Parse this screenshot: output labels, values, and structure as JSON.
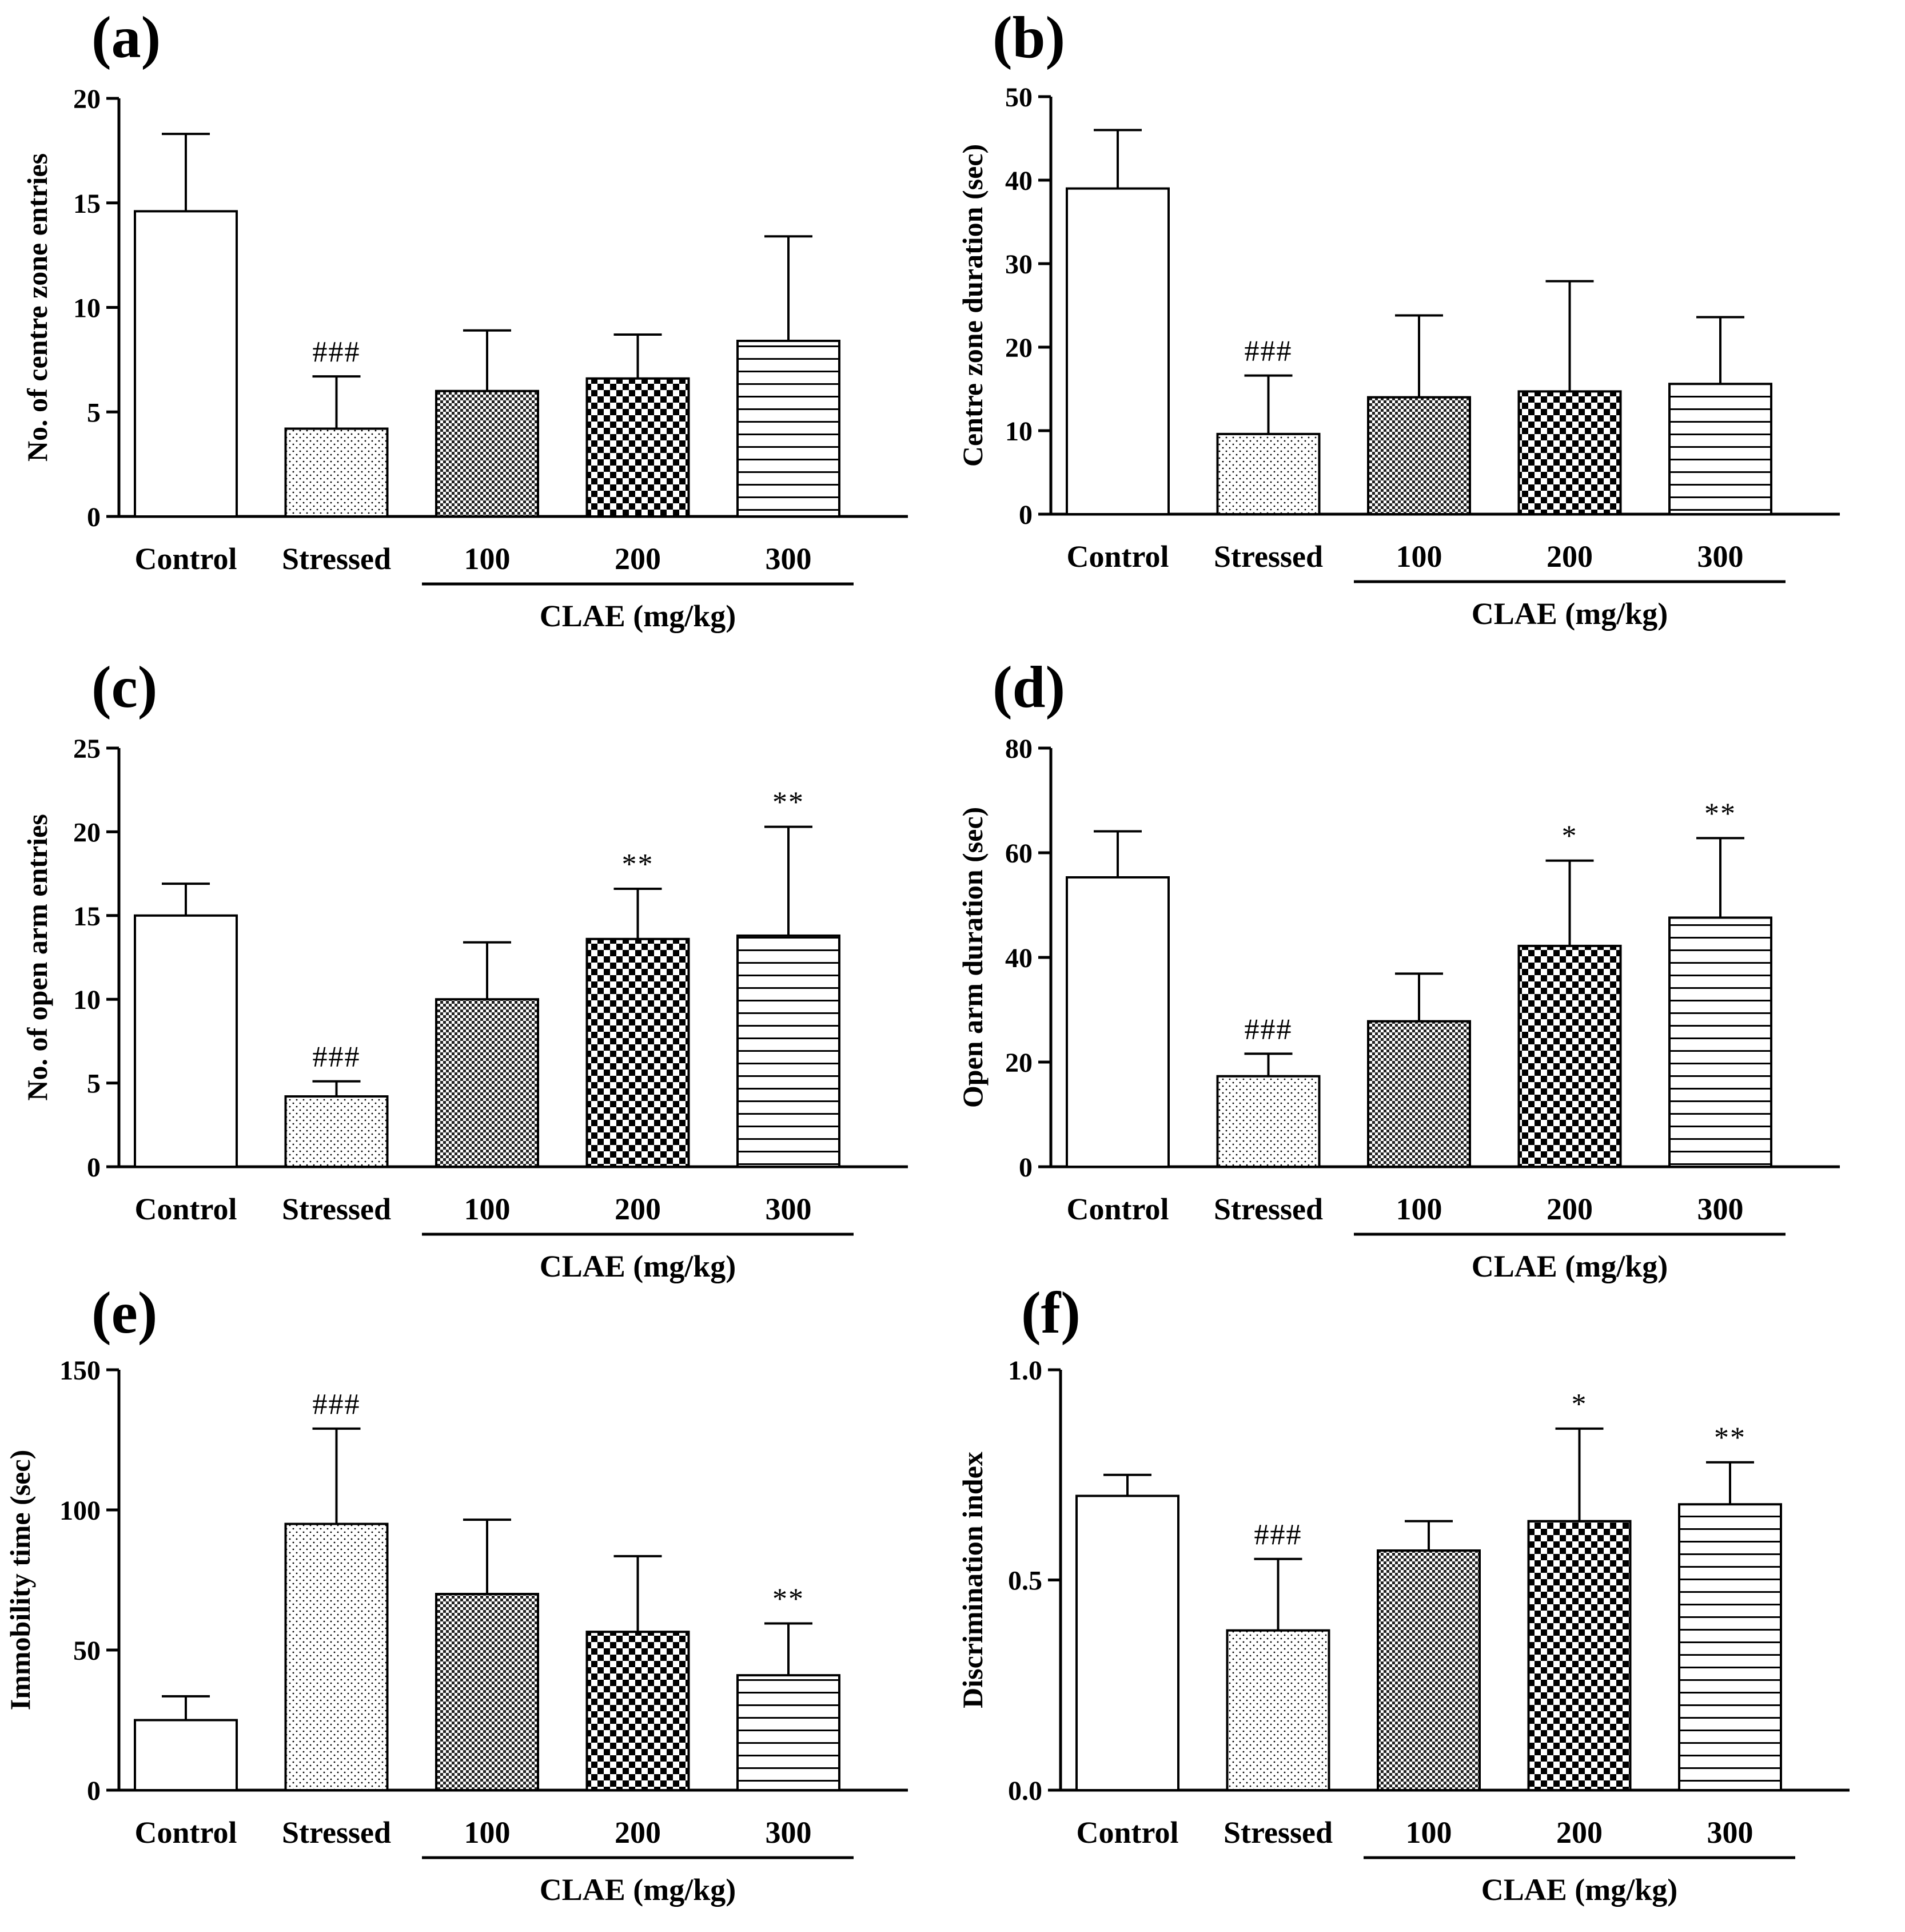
{
  "categories": [
    "Control",
    "Stressed",
    "100",
    "200",
    "300"
  ],
  "group_label": "CLAE (mg/kg)",
  "colors": {
    "ink": "#000000",
    "background": "#ffffff"
  },
  "bar_patterns": [
    "white-fill",
    "stipple-dots",
    "fine-checker",
    "coarse-checker",
    "horizontal-lines"
  ],
  "chart_data": [
    {
      "panel_label": "(a)",
      "type": "bar",
      "ylabel": "No. of centre zone entries",
      "ylim": [
        0,
        20
      ],
      "yticks": [
        0,
        5,
        10,
        15,
        20
      ],
      "ytick_labels": [
        "0",
        "5",
        "10",
        "15",
        "20"
      ],
      "categories": [
        "Control",
        "Stressed",
        "100",
        "200",
        "300"
      ],
      "values": [
        14.6,
        4.2,
        6.0,
        6.6,
        8.4
      ],
      "errors": [
        3.7,
        2.5,
        2.9,
        2.1,
        5.0
      ],
      "annotations": [
        "",
        "###",
        "",
        "",
        ""
      ]
    },
    {
      "panel_label": "(b)",
      "type": "bar",
      "ylabel": "Centre zone duration (sec)",
      "ylim": [
        0,
        50
      ],
      "yticks": [
        0,
        10,
        20,
        30,
        40,
        50
      ],
      "ytick_labels": [
        "0",
        "10",
        "20",
        "30",
        "40",
        "50"
      ],
      "categories": [
        "Control",
        "Stressed",
        "100",
        "200",
        "300"
      ],
      "values": [
        39.0,
        9.6,
        14.0,
        14.7,
        15.6
      ],
      "errors": [
        7.0,
        7.0,
        9.8,
        13.2,
        8.0
      ],
      "annotations": [
        "",
        "###",
        "",
        "",
        ""
      ]
    },
    {
      "panel_label": "(c)",
      "type": "bar",
      "ylabel": "No. of open arm entries",
      "ylim": [
        0,
        25
      ],
      "yticks": [
        0,
        5,
        10,
        15,
        20,
        25
      ],
      "ytick_labels": [
        "0",
        "5",
        "10",
        "15",
        "20",
        "25"
      ],
      "categories": [
        "Control",
        "Stressed",
        "100",
        "200",
        "300"
      ],
      "values": [
        15.0,
        4.2,
        10.0,
        13.6,
        13.8
      ],
      "errors": [
        1.9,
        0.9,
        3.4,
        3.0,
        6.5
      ],
      "annotations": [
        "",
        "###",
        "",
        "**",
        "**"
      ]
    },
    {
      "panel_label": "(d)",
      "type": "bar",
      "ylabel": "Open arm duration (sec)",
      "ylim": [
        0,
        80
      ],
      "yticks": [
        0,
        20,
        40,
        60,
        80
      ],
      "ytick_labels": [
        "0",
        "20",
        "40",
        "60",
        "80"
      ],
      "categories": [
        "Control",
        "Stressed",
        "100",
        "200",
        "300"
      ],
      "values": [
        55.3,
        17.3,
        27.8,
        42.2,
        47.6
      ],
      "errors": [
        8.8,
        4.3,
        9.1,
        16.3,
        15.2
      ],
      "annotations": [
        "",
        "###",
        "",
        "*",
        "**"
      ]
    },
    {
      "panel_label": "(e)",
      "type": "bar",
      "ylabel": "Immobility time (sec)",
      "ylim": [
        0,
        150
      ],
      "yticks": [
        0,
        50,
        100,
        150
      ],
      "ytick_labels": [
        "0",
        "50",
        "100",
        "150"
      ],
      "categories": [
        "Control",
        "Stressed",
        "100",
        "200",
        "300"
      ],
      "values": [
        25.0,
        95.0,
        70.0,
        56.5,
        41.0
      ],
      "errors": [
        8.5,
        34.0,
        26.5,
        27.0,
        18.5
      ],
      "annotations": [
        "",
        "###",
        "",
        "",
        "**"
      ]
    },
    {
      "panel_label": "(f)",
      "type": "bar",
      "ylabel": "Discrimination index",
      "ylim": [
        0,
        1.0
      ],
      "yticks": [
        0,
        0.5,
        1.0
      ],
      "ytick_labels": [
        "0.0",
        "0.5",
        "1.0"
      ],
      "categories": [
        "Control",
        "Stressed",
        "100",
        "200",
        "300"
      ],
      "values": [
        0.7,
        0.38,
        0.57,
        0.64,
        0.68
      ],
      "errors": [
        0.05,
        0.17,
        0.07,
        0.22,
        0.1
      ],
      "annotations": [
        "",
        "###",
        "",
        "*",
        "**"
      ]
    }
  ]
}
